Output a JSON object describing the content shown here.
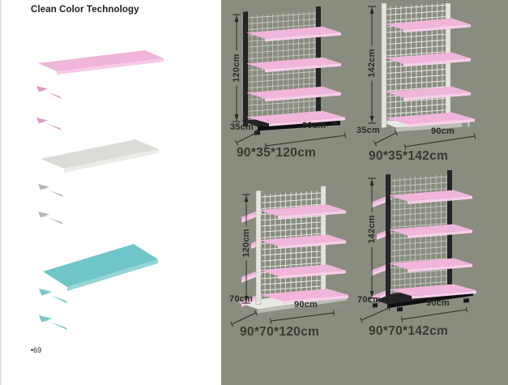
{
  "left_panel": {
    "title": "Clean Color Technology",
    "page_number": "•69",
    "components": [
      {
        "name": "pink-shelf-board",
        "color": "#efb5da",
        "edge": "#f6cbe7"
      },
      {
        "name": "pink-bracket",
        "color": "#dd9cc8"
      },
      {
        "name": "gray-shelf-board",
        "color": "#dbdbd7",
        "edge": "#ebebe7"
      },
      {
        "name": "gray-bracket",
        "color": "#b6b6b0"
      },
      {
        "name": "teal-shelf-board",
        "color": "#6fc5c8",
        "edge": "#96d6d8"
      },
      {
        "name": "teal-bracket",
        "color": "#7cc7ca"
      }
    ]
  },
  "catalog": {
    "background": "#898c7f",
    "products": [
      {
        "label": "90*35*120cm",
        "width": "90cm",
        "depth": "35cm",
        "height": "120cm",
        "frame_color": "black",
        "sides": "single"
      },
      {
        "label": "90*35*142cm",
        "width": "90cm",
        "depth": "35cm",
        "height": "142cm",
        "frame_color": "white",
        "sides": "single"
      },
      {
        "label": "90*70*120cm",
        "width": "90cm",
        "depth": "70cm",
        "height": "120cm",
        "frame_color": "white",
        "sides": "double"
      },
      {
        "label": "90*70*142cm",
        "width": "90cm",
        "depth": "70cm",
        "height": "142cm",
        "frame_color": "black",
        "sides": "double"
      }
    ]
  },
  "palette": {
    "black_frame": "#232326",
    "white_frame": "#e9e9e4",
    "wire_on_black": "#c9cac2",
    "wire_on_white": "#f1f1ec",
    "pink_top": "#efb5da",
    "pink_front": "#f7cfe9",
    "dimension_line": "#2b2b25",
    "label_text": "#3a3a30"
  }
}
